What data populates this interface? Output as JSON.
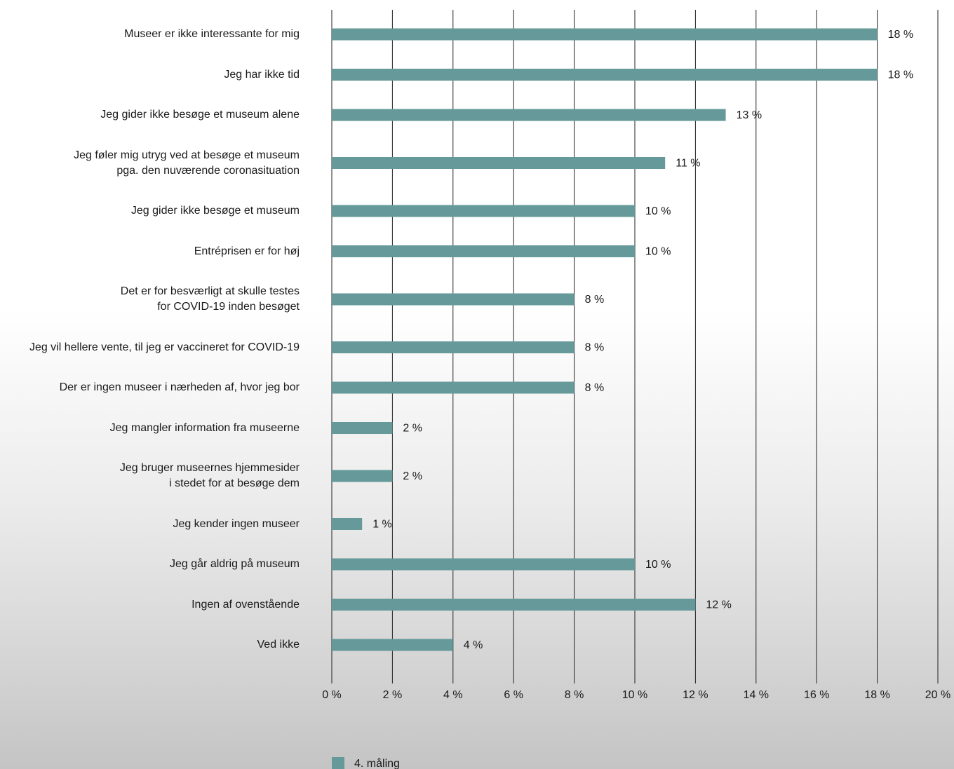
{
  "chart_data": {
    "type": "bar",
    "orientation": "horizontal",
    "categories": [
      "Museer er ikke interessante for mig",
      "Jeg har ikke tid",
      "Jeg gider ikke besøge et museum alene",
      "Jeg føler mig utryg ved at besøge et museum\npga. den nuværende coronasituation",
      "Jeg gider ikke besøge et museum",
      "Entréprisen er for høj",
      "Det er for besværligt at skulle testes\nfor COVID-19 inden besøget",
      "Jeg vil hellere vente, til jeg er vaccineret for COVID-19",
      "Der er ingen museer i nærheden af, hvor jeg bor",
      "Jeg mangler information fra museerne",
      "Jeg bruger museernes hjemmesider\ni stedet for at besøge dem",
      "Jeg kender ingen museer",
      "Jeg går aldrig på museum",
      "Ingen af ovenstående",
      "Ved ikke"
    ],
    "series": [
      {
        "name": "4. måling",
        "color": "#669999",
        "values": [
          18,
          18,
          13,
          11,
          10,
          10,
          8,
          8,
          8,
          2,
          2,
          1,
          10,
          12,
          4
        ],
        "value_labels": [
          "18 %",
          "18 %",
          "13 %",
          "11 %",
          "10 %",
          "10 %",
          "8 %",
          "8 %",
          "8 %",
          "2 %",
          "2 %",
          "1 %",
          "10 %",
          "12 %",
          "4 %"
        ]
      }
    ],
    "xlim": [
      0,
      20
    ],
    "xticks": [
      {
        "value": 0,
        "label": "0 %"
      },
      {
        "value": 2,
        "label": "2 %"
      },
      {
        "value": 4,
        "label": "4 %"
      },
      {
        "value": 6,
        "label": "6 %"
      },
      {
        "value": 8,
        "label": "8 %"
      },
      {
        "value": 10,
        "label": "10 %"
      },
      {
        "value": 12,
        "label": "12 %"
      },
      {
        "value": 14,
        "label": "14 %"
      },
      {
        "value": 16,
        "label": "16 %"
      },
      {
        "value": 18,
        "label": "18 %"
      },
      {
        "value": 20,
        "label": "20 %"
      }
    ],
    "grid": true
  }
}
